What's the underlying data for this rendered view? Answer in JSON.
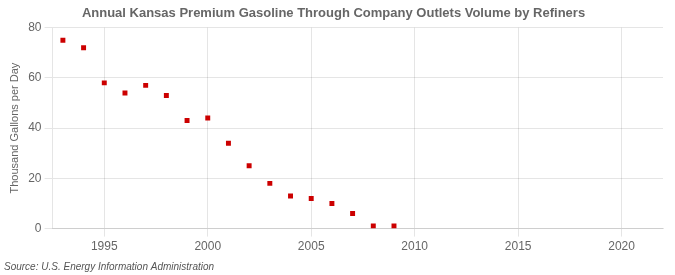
{
  "chart_data": {
    "type": "scatter",
    "title": "Annual Kansas Premium Gasoline Through Company Outlets Volume by Refiners",
    "ylabel": "Thousand Gallons per Day",
    "source": "Source: U.S. Energy Information Administration",
    "x": [
      1993,
      1994,
      1995,
      1996,
      1997,
      1998,
      1999,
      2000,
      2001,
      2002,
      2003,
      2004,
      2005,
      2006,
      2007,
      2008,
      2009
    ],
    "values": [
      75.0,
      72.0,
      58.0,
      54.0,
      57.0,
      53.0,
      43.0,
      44.0,
      34.0,
      25.0,
      18.0,
      13.0,
      12.0,
      10.0,
      6.0,
      1.0,
      1.0
    ],
    "color": "#cc0000",
    "marker": "square",
    "xlim": [
      1992.5,
      2022
    ],
    "ylim": [
      0,
      80
    ],
    "xticks": [
      1995,
      2000,
      2005,
      2010,
      2015,
      2020
    ],
    "yticks": [
      0,
      20,
      40,
      60,
      80
    ],
    "grid": true
  }
}
